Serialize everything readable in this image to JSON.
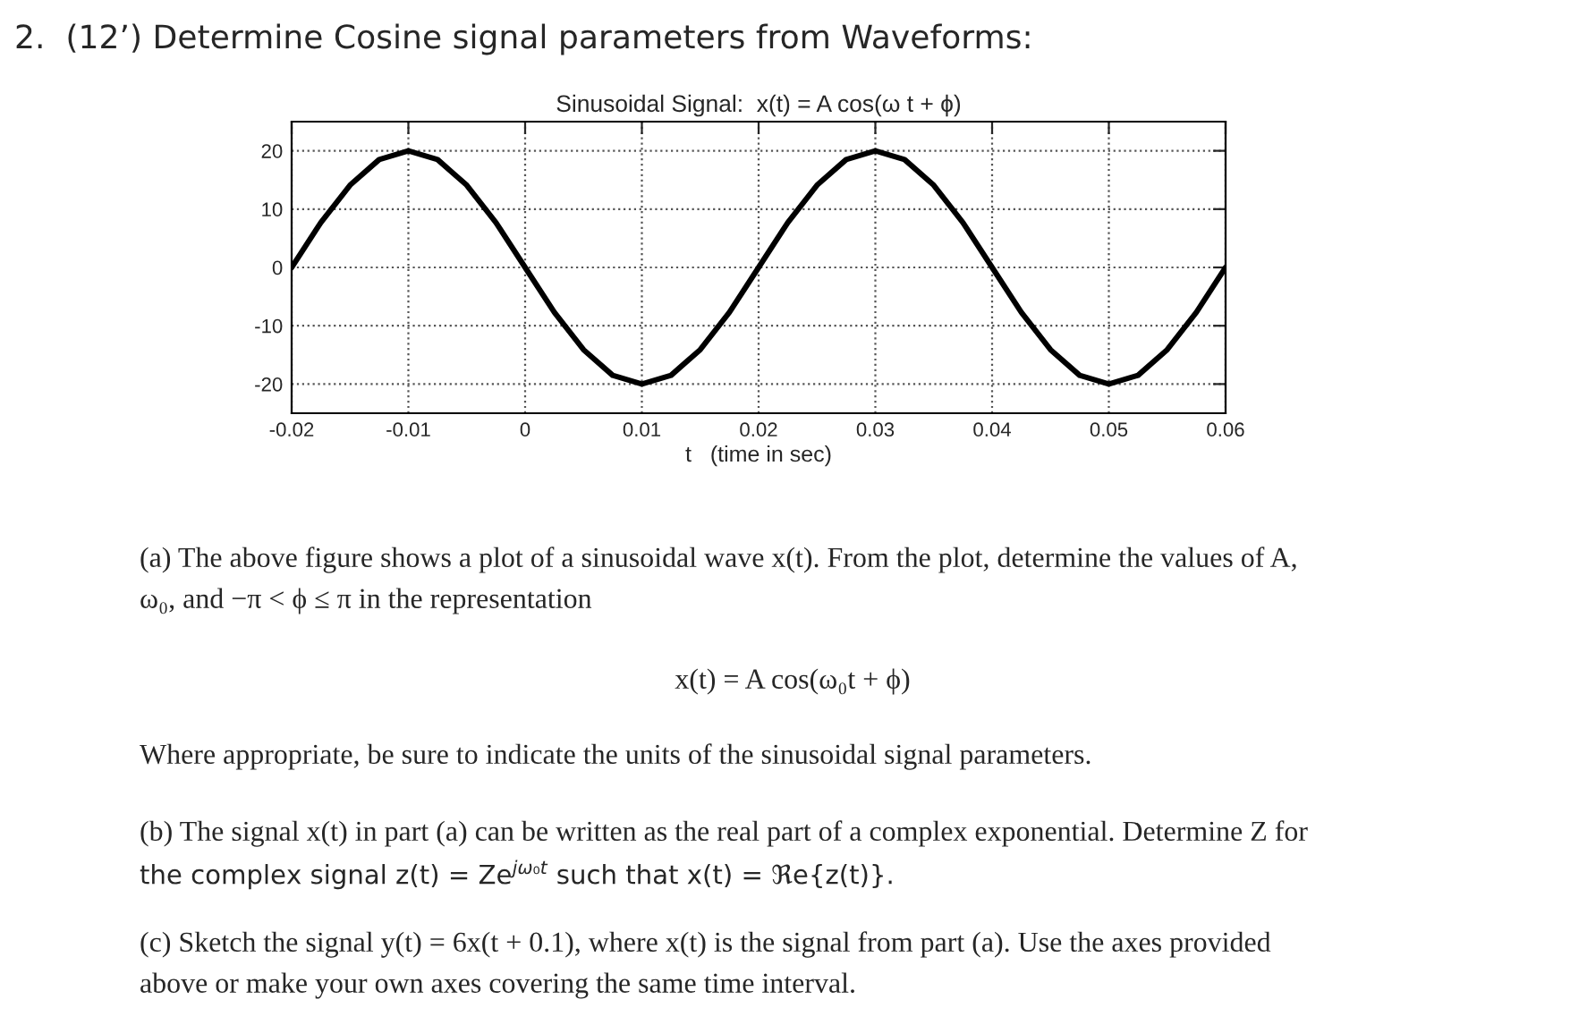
{
  "chart_data": {
    "type": "line",
    "title": "2.  (12’) Determine Cosine signal parameters from Waveforms:",
    "subtitle": "Sinusoidal Signal:  x(t) = A cos(ω t + ϕ)",
    "xlabel": "t   (time in sec)",
    "x": [
      -0.02,
      -0.0175,
      -0.015,
      -0.0125,
      -0.01,
      -0.0075,
      -0.005,
      -0.0025,
      0,
      0.0025,
      0.005,
      0.0075,
      0.01,
      0.0125,
      0.015,
      0.0175,
      0.02,
      0.0225,
      0.025,
      0.0275,
      0.03,
      0.0325,
      0.035,
      0.0375,
      0.04,
      0.0425,
      0.045,
      0.0475,
      0.05,
      0.0525,
      0.055,
      0.0575,
      0.06
    ],
    "series": [
      {
        "color": "#000000",
        "values": [
          0,
          7.7,
          14.1,
          18.5,
          20,
          18.5,
          14.1,
          7.7,
          0,
          -7.7,
          -14.1,
          -18.5,
          -20,
          -18.5,
          -14.1,
          -7.7,
          0,
          7.7,
          14.1,
          18.5,
          20,
          18.5,
          14.1,
          7.7,
          0,
          -7.7,
          -14.1,
          -18.5,
          -20,
          -18.5,
          -14.1,
          -7.7,
          0
        ]
      }
    ],
    "xlim": [
      -0.02,
      0.06
    ],
    "xticks": [
      -0.02,
      -0.01,
      0,
      0.01,
      0.02,
      0.03,
      0.04,
      0.05,
      0.06
    ],
    "ylim": [
      -25,
      25
    ],
    "yticks": [
      -20,
      -10,
      0,
      10,
      20
    ],
    "grid": true,
    "line_style": "solid",
    "marker": "none",
    "annotations": [
      "(a) The above figure shows a plot of a sinusoidal wave x(t). From the plot, determine the values of A,",
      "ω₀, and −π < ϕ ≤ π in the representation",
      "x(t) = A cos(ω₀t + ϕ)",
      "Where appropriate, be sure to indicate the units of the sinusoidal signal parameters.",
      "(b) The signal x(t) in part (a) can be written as the real part of a complex exponential. Determine Z for",
      "the complex signal z(t) = Ze$^{jω₀t}$ such that x(t) = ℜe{z(t)}.",
      "(c) Sketch the signal y(t) = 6x(t + 0.1), where x(t) is the signal from part (a). Use the axes provided",
      "above or make your own axes covering the same time interval."
    ]
  }
}
